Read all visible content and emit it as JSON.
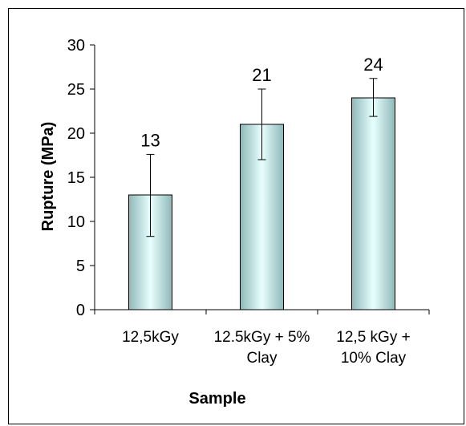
{
  "chart_data": {
    "type": "bar",
    "categories": [
      [
        "12,5kGy"
      ],
      [
        "12.5kGy + 5%",
        "Clay"
      ],
      [
        "12,5 kGy +",
        "10% Clay"
      ]
    ],
    "values": [
      13,
      21,
      24
    ],
    "error_low": [
      8.3,
      17.0,
      21.9
    ],
    "error_high": [
      17.6,
      25.0,
      26.2
    ],
    "data_labels": [
      "13",
      "21",
      "24"
    ],
    "xlabel": "Sample",
    "ylabel": "Rupture (MPa)",
    "ylim": [
      0,
      30
    ],
    "yticks": [
      0,
      5,
      10,
      15,
      20,
      25,
      30
    ],
    "grid": false,
    "legend": "none",
    "bar_colors": {
      "edge": "#8fb8b8",
      "center": "#e8ffff"
    }
  }
}
